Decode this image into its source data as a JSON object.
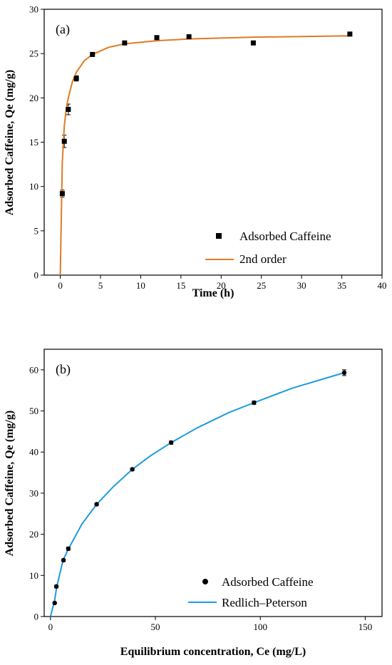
{
  "chart_data": [
    {
      "type": "scatter",
      "panel_label": "(a)",
      "xlabel": "Time (h)",
      "ylabel": "Adsorbed Caffeine, Qe (mg/g)",
      "xlim": [
        -2,
        40
      ],
      "ylim": [
        0,
        30
      ],
      "xticks": [
        "0",
        "5",
        "10",
        "15",
        "20",
        "25",
        "30",
        "35",
        "40"
      ],
      "yticks": [
        "0",
        "5",
        "10",
        "15",
        "20",
        "25",
        "30"
      ],
      "legend_position": "bottom-right",
      "colors": {
        "data": "#000000",
        "fit": "#e07b24"
      },
      "series": [
        {
          "name": "Adsorbed Caffeine",
          "kind": "points",
          "marker": "square",
          "x": [
            0.25,
            0.5,
            1,
            2,
            4,
            8,
            12,
            16,
            24,
            36
          ],
          "y": [
            9.2,
            15.1,
            18.7,
            22.2,
            24.9,
            26.2,
            26.8,
            26.9,
            26.2,
            27.2
          ],
          "err": [
            0.4,
            0.7,
            0.6,
            0.3,
            0.2,
            0.2,
            0.2,
            0.2,
            0.2,
            0.2
          ]
        },
        {
          "name": "2nd order",
          "kind": "line",
          "x": [
            0,
            0.25,
            0.5,
            0.75,
            1,
            1.5,
            2,
            3,
            4,
            6,
            8,
            12,
            16,
            24,
            36
          ],
          "y": [
            0,
            12.7,
            16.8,
            18.8,
            20.0,
            21.8,
            22.9,
            24.2,
            24.9,
            25.7,
            26.1,
            26.45,
            26.65,
            26.85,
            27.0
          ]
        }
      ]
    },
    {
      "type": "scatter",
      "panel_label": "(b)",
      "xlabel": "Equilibrium concentration, Ce (mg/L)",
      "ylabel": "Adsorbed Caffeine, Qe (mg/g)",
      "xlim": [
        -3,
        158
      ],
      "ylim": [
        0,
        65
      ],
      "xticks": [
        "0",
        "50",
        "100",
        "150"
      ],
      "yticks": [
        "0",
        "10",
        "20",
        "30",
        "40",
        "50",
        "60"
      ],
      "legend_position": "bottom-right",
      "colors": {
        "data": "#000000",
        "fit": "#1f9ae0"
      },
      "series": [
        {
          "name": "Adsorbed Caffeine",
          "kind": "points",
          "marker": "circle",
          "x": [
            2.0,
            2.8,
            6.2,
            8.5,
            22,
            39,
            57.5,
            97,
            140
          ],
          "y": [
            3.3,
            7.3,
            13.7,
            16.5,
            27.3,
            35.8,
            42.3,
            52.0,
            59.3
          ],
          "err": [
            0.1,
            0.3,
            0.3,
            0.4,
            0.3,
            0.3,
            0.4,
            0.4,
            0.7
          ]
        },
        {
          "name": "Redlich–Peterson",
          "kind": "line",
          "x": [
            0,
            2,
            3,
            6,
            8.5,
            15,
            22,
            30,
            39,
            48,
            57.5,
            70,
            85,
            97,
            115,
            140
          ],
          "y": [
            0,
            4.0,
            7.3,
            13.7,
            16.4,
            22.5,
            27.3,
            31.6,
            35.8,
            39.2,
            42.3,
            45.9,
            49.6,
            52.0,
            55.5,
            59.3
          ]
        }
      ]
    }
  ]
}
